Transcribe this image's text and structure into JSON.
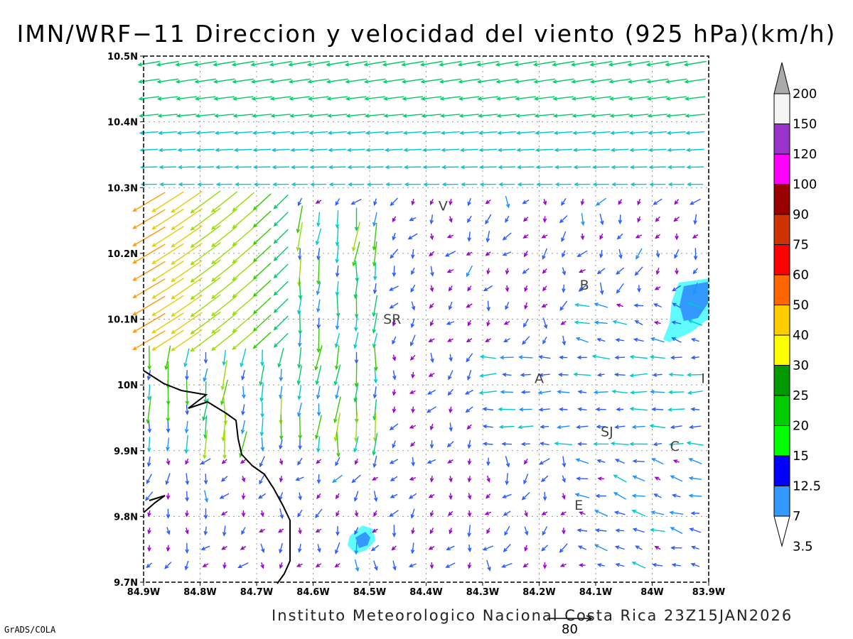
{
  "title": "IMN/WRF−11 Direccion y velocidad del viento (925 hPa)(km/h)",
  "credit": "Instituto Meteorologico Nacional Costa Rica  23Z15JAN2026",
  "software_label": "GrADS/COLA",
  "reference_vector_label": "80",
  "map": {
    "lat_range": [
      9.7,
      10.5
    ],
    "lon_range": [
      -84.9,
      -83.9
    ],
    "lat_ticks": [
      "9.7N",
      "9.8N",
      "9.9N",
      "10N",
      "10.1N",
      "10.2N",
      "10.3N",
      "10.4N",
      "10.5N"
    ],
    "lon_ticks": [
      "84.9W",
      "84.8W",
      "84.7W",
      "84.6W",
      "84.5W",
      "84.4W",
      "84.3W",
      "84.2W",
      "84.1W",
      "84W",
      "83.9W"
    ],
    "grid": "dotted",
    "places": [
      {
        "label": "V",
        "lon": -84.37,
        "lat": 10.265
      },
      {
        "label": "SR",
        "lon": -84.46,
        "lat": 10.093
      },
      {
        "label": "B",
        "lon": -84.12,
        "lat": 10.145
      },
      {
        "label": "A",
        "lon": -84.2,
        "lat": 10.003
      },
      {
        "label": "I",
        "lon": -83.91,
        "lat": 10.003
      },
      {
        "label": "SJ",
        "lon": -84.08,
        "lat": 9.922
      },
      {
        "label": "C",
        "lon": -83.96,
        "lat": 9.9
      },
      {
        "label": "E",
        "lon": -84.13,
        "lat": 9.81
      }
    ]
  },
  "colorbar": {
    "labels": [
      "3.5",
      "7",
      "12.5",
      "15",
      "20",
      "25",
      "30",
      "40",
      "50",
      "60",
      "75",
      "90",
      "100",
      "120",
      "150",
      "200"
    ],
    "colors": [
      "#5ffbff",
      "#3399ff",
      "#0000ff",
      "#00ff00",
      "#00cc00",
      "#009900",
      "#ffff00",
      "#ffcc00",
      "#ff6600",
      "#ff0000",
      "#cc3300",
      "#990000",
      "#ff00ff",
      "#9933cc",
      "#f5f5f5",
      "#aaaaaa"
    ]
  }
}
